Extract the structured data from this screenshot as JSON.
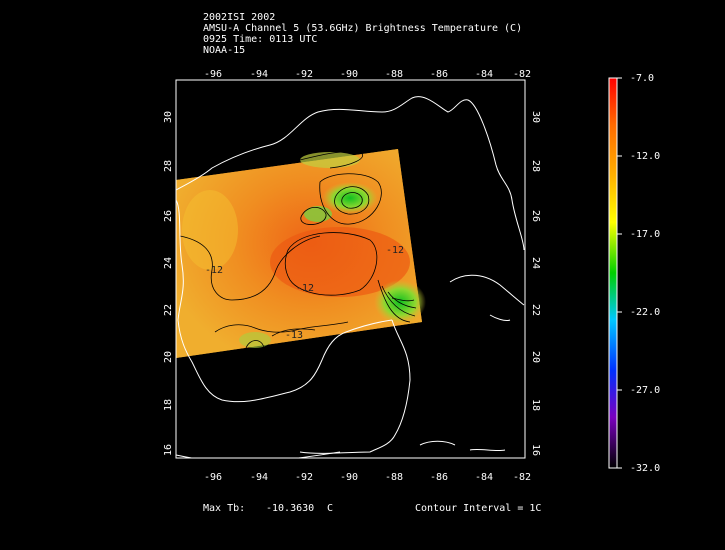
{
  "header": {
    "line1": "2002ISI 2002",
    "line2": "AMSU-A Channel 5 (53.6GHz) Brightness Temperature (C)",
    "line3": "0925 Time: 0113 UTC",
    "line4": "NOAA-15"
  },
  "map": {
    "lon_ticks": [
      "-96",
      "-94",
      "-92",
      "-90",
      "-88",
      "-86",
      "-84",
      "-82"
    ],
    "lat_ticks": [
      "30",
      "28",
      "26",
      "24",
      "22",
      "20",
      "18",
      "16"
    ],
    "contour_labels": [
      "-12",
      "-12",
      "-12",
      "-13"
    ]
  },
  "colorbar": {
    "labels": [
      "-7.0",
      "-12.0",
      "-17.0",
      "-22.0",
      "-27.0",
      "-32.0"
    ],
    "colors": [
      "#ff0000",
      "#ff8800",
      "#ffff00",
      "#00cc00",
      "#00ccff",
      "#0000ff",
      "#8800ff",
      "#000000"
    ]
  },
  "footer": {
    "max_tb_label": "Max Tb:",
    "max_tb_value": "-10.3630",
    "max_tb_unit": "C",
    "contour": "Contour Interval = 1C"
  }
}
